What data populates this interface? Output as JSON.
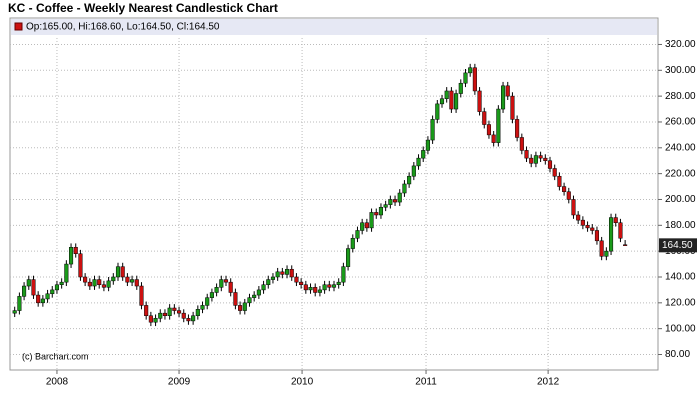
{
  "chart_data": {
    "type": "candlestick",
    "title": "KC - Coffee - Weekly Nearest Candlestick Chart",
    "legend_text": "Op:165.00, Hi:168.60, Lo:164.50, Cl:164.50",
    "last_label": "164.50",
    "credit": "(c) Barchart.com",
    "up_color": "#1a9a1a",
    "down_color": "#cc1111",
    "grid": true,
    "xlim": [
      -1,
      137
    ],
    "xticks": [
      {
        "value": 9,
        "label": "2008"
      },
      {
        "value": 35,
        "label": "2009"
      },
      {
        "value": 61.2,
        "label": "2010"
      },
      {
        "value": 87.6,
        "label": "2011"
      },
      {
        "value": 113.6,
        "label": "2012"
      }
    ],
    "ylim": [
      68,
      325
    ],
    "yticks": [
      {
        "value": 80,
        "label": "80.00"
      },
      {
        "value": 100,
        "label": "100.00"
      },
      {
        "value": 120,
        "label": "120.00"
      },
      {
        "value": 140,
        "label": "140.00"
      },
      {
        "value": 160,
        "label": "160.00"
      },
      {
        "value": 180,
        "label": "180.00"
      },
      {
        "value": 200,
        "label": "200.00"
      },
      {
        "value": 220,
        "label": "220.00"
      },
      {
        "value": 240,
        "label": "240.00"
      },
      {
        "value": 260,
        "label": "260.00"
      },
      {
        "value": 280,
        "label": "280.00"
      },
      {
        "value": 300,
        "label": "300.00"
      },
      {
        "value": 320,
        "label": "320.00"
      }
    ],
    "open": [
      112,
      114,
      125,
      133,
      138,
      126,
      120,
      123,
      127,
      130,
      134,
      136,
      150,
      163,
      158,
      140,
      136,
      133,
      138,
      134,
      132,
      137,
      140,
      148,
      140,
      136,
      138,
      133,
      118,
      110,
      105,
      108,
      112,
      110,
      116,
      114,
      112,
      108,
      106,
      110,
      115,
      118,
      124,
      128,
      132,
      138,
      136,
      128,
      118,
      114,
      120,
      124,
      126,
      130,
      134,
      138,
      140,
      144,
      142,
      146,
      140,
      136,
      134,
      130,
      132,
      128,
      130,
      134,
      132,
      134,
      136,
      148,
      162,
      170,
      176,
      182,
      178,
      190,
      188,
      194,
      196,
      200,
      198,
      205,
      212,
      218,
      226,
      232,
      238,
      246,
      262,
      274,
      278,
      284,
      270,
      282,
      290,
      298,
      302,
      284,
      268,
      258,
      250,
      244,
      270,
      288,
      280,
      262,
      248,
      238,
      232,
      228,
      234,
      232,
      230,
      224,
      218,
      210,
      206,
      200,
      188,
      184,
      180,
      178,
      176,
      168,
      156,
      160,
      186,
      182,
      165
    ],
    "high": [
      117,
      128,
      136,
      141,
      141,
      129,
      126,
      130,
      133,
      137,
      139,
      153,
      166,
      166,
      161,
      143,
      139,
      141,
      141,
      137,
      140,
      143,
      151,
      151,
      143,
      141,
      141,
      136,
      121,
      113,
      111,
      115,
      115,
      119,
      119,
      117,
      115,
      111,
      113,
      118,
      121,
      127,
      131,
      135,
      141,
      141,
      139,
      131,
      121,
      123,
      127,
      129,
      133,
      137,
      141,
      143,
      147,
      147,
      149,
      149,
      143,
      139,
      137,
      135,
      135,
      133,
      137,
      137,
      137,
      139,
      151,
      165,
      173,
      179,
      185,
      185,
      193,
      193,
      197,
      199,
      203,
      203,
      208,
      215,
      221,
      229,
      235,
      241,
      249,
      265,
      277,
      281,
      287,
      287,
      285,
      293,
      301,
      305,
      305,
      287,
      271,
      261,
      253,
      273,
      291,
      291,
      283,
      265,
      251,
      241,
      235,
      237,
      237,
      235,
      233,
      227,
      221,
      213,
      209,
      203,
      191,
      187,
      183,
      181,
      179,
      171,
      163,
      189,
      189,
      185,
      168.6
    ],
    "low": [
      109,
      111,
      122,
      130,
      123,
      117,
      117,
      120,
      124,
      127,
      131,
      133,
      147,
      155,
      137,
      133,
      130,
      130,
      131,
      129,
      129,
      134,
      137,
      137,
      133,
      133,
      130,
      115,
      107,
      102,
      102,
      105,
      107,
      107,
      111,
      109,
      105,
      103,
      103,
      107,
      112,
      115,
      121,
      125,
      129,
      133,
      125,
      115,
      111,
      111,
      117,
      121,
      123,
      127,
      131,
      135,
      137,
      139,
      139,
      137,
      133,
      131,
      127,
      127,
      125,
      125,
      127,
      129,
      129,
      131,
      133,
      145,
      159,
      167,
      173,
      175,
      175,
      185,
      185,
      191,
      193,
      195,
      195,
      202,
      209,
      215,
      223,
      229,
      235,
      243,
      259,
      271,
      275,
      267,
      267,
      279,
      287,
      295,
      281,
      265,
      255,
      247,
      241,
      241,
      267,
      277,
      259,
      245,
      235,
      229,
      225,
      225,
      229,
      227,
      221,
      215,
      207,
      203,
      197,
      185,
      181,
      177,
      175,
      173,
      165,
      153,
      153,
      157,
      179,
      167,
      164.5
    ],
    "close": [
      114,
      125,
      133,
      138,
      126,
      120,
      123,
      127,
      130,
      134,
      136,
      150,
      163,
      158,
      140,
      136,
      133,
      138,
      134,
      132,
      137,
      140,
      148,
      140,
      136,
      138,
      133,
      118,
      110,
      105,
      108,
      112,
      110,
      116,
      114,
      112,
      108,
      106,
      110,
      115,
      118,
      124,
      128,
      132,
      138,
      136,
      128,
      118,
      114,
      120,
      124,
      126,
      130,
      134,
      138,
      140,
      144,
      142,
      146,
      140,
      136,
      134,
      130,
      132,
      128,
      130,
      134,
      132,
      134,
      136,
      148,
      162,
      170,
      176,
      182,
      178,
      190,
      188,
      194,
      196,
      200,
      198,
      205,
      212,
      218,
      226,
      232,
      238,
      246,
      262,
      274,
      278,
      284,
      270,
      282,
      290,
      298,
      302,
      284,
      268,
      258,
      250,
      244,
      270,
      288,
      280,
      262,
      248,
      238,
      232,
      228,
      234,
      232,
      230,
      224,
      218,
      210,
      206,
      200,
      188,
      184,
      180,
      178,
      176,
      168,
      156,
      160,
      186,
      182,
      170,
      164.5
    ]
  }
}
